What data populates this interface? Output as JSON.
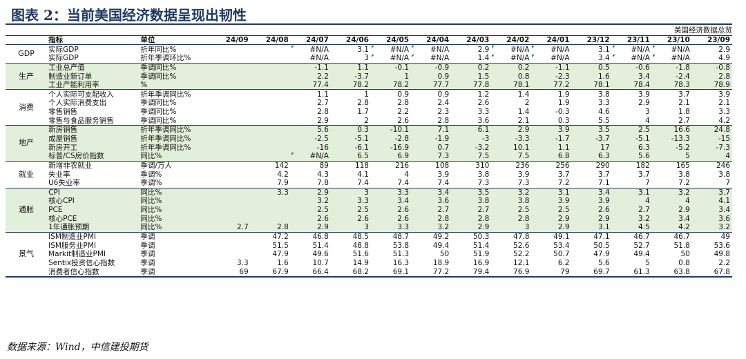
{
  "figure_title": "图表 2：当前美国经济数据呈现出韧性",
  "table_caption": "美国经济数据总览",
  "columns": {
    "group": "",
    "indicator": "指标",
    "unit": "单位",
    "periods": [
      "24/09",
      "24/08",
      "24/07",
      "24/06",
      "24/05",
      "24/04",
      "24/03",
      "24/02",
      "24/01",
      "23/12",
      "23/11",
      "23/10",
      "23/09"
    ]
  },
  "accent_color": "#1f3864",
  "shade_color": "#e2efda",
  "marker_color": "#1e8c45",
  "groups": [
    {
      "label": "GDP",
      "shaded": false,
      "rows": [
        {
          "indicator": "实际GDP",
          "unit": "折年同比%",
          "values": [
            "",
            "",
            "#N/A",
            "3.1",
            "#N/A",
            "#N/A",
            "2.9",
            "#N/A",
            "#N/A",
            "3.1",
            "#N/A",
            "#N/A",
            "2.9"
          ],
          "marks": [
            2,
            4,
            5,
            7,
            8,
            10,
            11
          ]
        },
        {
          "indicator": "实际GDP",
          "unit": "折年季调环比%",
          "values": [
            "",
            "",
            "#N/A",
            "3",
            "#N/A",
            "#N/A",
            "1.4",
            "#N/A",
            "#N/A",
            "3.4",
            "#N/A",
            "#N/A",
            "4.9"
          ],
          "marks": [
            4,
            5,
            7,
            8,
            10,
            11
          ]
        }
      ]
    },
    {
      "label": "生产",
      "shaded": true,
      "rows": [
        {
          "indicator": "工业总产值",
          "unit": "季调同比%",
          "values": [
            "",
            "",
            "-1.1",
            "1.1",
            "-0.1",
            "-0.9",
            "0.2",
            "0.2",
            "-1.1",
            "0.5",
            "-0.6",
            "-1.8",
            "-0.8"
          ],
          "marks": []
        },
        {
          "indicator": "制造业新订单",
          "unit": "季调同比%",
          "values": [
            "",
            "",
            "2.2",
            "-3.7",
            "1",
            "0.9",
            "1.5",
            "0.8",
            "-2.3",
            "1.6",
            "3.4",
            "-2.4",
            "2.8"
          ],
          "marks": []
        },
        {
          "indicator": "工业产能利用率",
          "unit": "%",
          "values": [
            "",
            "",
            "77.4",
            "78.2",
            "78.2",
            "77.7",
            "77.8",
            "78.1",
            "77.2",
            "78.1",
            "78.4",
            "78.3",
            "78.9"
          ],
          "marks": []
        }
      ]
    },
    {
      "label": "消费",
      "shaded": false,
      "rows": [
        {
          "indicator": "个人实际可支配收入",
          "unit": "折年季调同比%",
          "values": [
            "",
            "",
            "1.1",
            "1",
            "0.9",
            "0.9",
            "1.2",
            "1.4",
            "1.9",
            "3.8",
            "3.9",
            "3.7",
            "3.9"
          ],
          "marks": []
        },
        {
          "indicator": "个人实际消费支出",
          "unit": "季调同比%",
          "values": [
            "",
            "",
            "2.7",
            "2.8",
            "2.8",
            "2.4",
            "2.6",
            "2",
            "1.9",
            "3.3",
            "2.9",
            "2.1",
            "2.1"
          ],
          "marks": []
        },
        {
          "indicator": "零售销售",
          "unit": "季调同比%",
          "values": [
            "",
            "",
            "2.8",
            "1.7",
            "2.2",
            "2.3",
            "3.3",
            "1.4",
            "-0.3",
            "4.6",
            "3",
            "1.8",
            "3.3"
          ],
          "marks": []
        },
        {
          "indicator": "零售与食品服务销售",
          "unit": "季调同比%",
          "values": [
            "",
            "",
            "2.9",
            "2",
            "2.6",
            "2.8",
            "3.6",
            "2.1",
            "0.3",
            "5.5",
            "4",
            "2.7",
            "4.2"
          ],
          "marks": []
        }
      ]
    },
    {
      "label": "地产",
      "shaded": true,
      "rows": [
        {
          "indicator": "新房销售",
          "unit": "折年季调同比%",
          "values": [
            "",
            "",
            "5.6",
            "0.3",
            "-10.1",
            "7.1",
            "6.1",
            "2.9",
            "3.9",
            "3.5",
            "2.5",
            "16.6",
            "24.8"
          ],
          "marks": []
        },
        {
          "indicator": "成屋销售",
          "unit": "折年季调同比%",
          "values": [
            "",
            "",
            "-2.5",
            "-5.1",
            "-2.8",
            "-1.9",
            "-3",
            "-3.3",
            "-1.7",
            "-3.7",
            "-5.1",
            "-13.3",
            "-15"
          ],
          "marks": []
        },
        {
          "indicator": "新房开工",
          "unit": "折年季调同比%",
          "values": [
            "",
            "",
            "-16",
            "-6.1",
            "-16.9",
            "0.7",
            "-3.2",
            "10.1",
            "1.1",
            "17",
            "6.3",
            "-5.2",
            "-7.3"
          ],
          "marks": []
        },
        {
          "indicator": "标普/CS房价指数",
          "unit": "同比%",
          "values": [
            "",
            "",
            "#N/A",
            "6.5",
            "6.9",
            "7.3",
            "7.5",
            "7.5",
            "6.8",
            "6.3",
            "5.6",
            "5",
            "4"
          ],
          "marks": [
            2
          ]
        }
      ]
    },
    {
      "label": "就业",
      "shaded": false,
      "rows": [
        {
          "indicator": "新增非农就业",
          "unit": "季调/万人",
          "values": [
            "",
            "142",
            "89",
            "118",
            "216",
            "108",
            "310",
            "236",
            "256",
            "290",
            "182",
            "165",
            "246"
          ],
          "marks": []
        },
        {
          "indicator": "失业率",
          "unit": "季调%",
          "values": [
            "",
            "4.2",
            "4.3",
            "4.1",
            "4",
            "3.9",
            "3.8",
            "3.9",
            "3.7",
            "3.7",
            "3.7",
            "3.8",
            "3.8"
          ],
          "marks": []
        },
        {
          "indicator": "U6失业率",
          "unit": "季调%",
          "values": [
            "",
            "7.9",
            "7.8",
            "7.4",
            "7.4",
            "7.4",
            "7.3",
            "7.3",
            "7.2",
            "7.1",
            "7",
            "7.2",
            "7"
          ],
          "marks": []
        }
      ]
    },
    {
      "label": "通胀",
      "shaded": true,
      "rows": [
        {
          "indicator": "CPI",
          "unit": "同比%",
          "values": [
            "",
            "3.3",
            "2.9",
            "3",
            "3.3",
            "3.4",
            "3.5",
            "3.2",
            "3.1",
            "3.4",
            "3.1",
            "3.2",
            "3.7"
          ],
          "marks": []
        },
        {
          "indicator": "核心CPI",
          "unit": "同比%",
          "values": [
            "",
            "",
            "3.2",
            "3.3",
            "3.4",
            "3.6",
            "3.8",
            "3.8",
            "3.9",
            "3.9",
            "4",
            "4",
            "4.1"
          ],
          "marks": []
        },
        {
          "indicator": "PCE",
          "unit": "同比%",
          "values": [
            "",
            "",
            "2.5",
            "2.5",
            "2.6",
            "2.7",
            "2.7",
            "2.5",
            "2.5",
            "2.6",
            "2.7",
            "2.9",
            "3.4"
          ],
          "marks": []
        },
        {
          "indicator": "核心PCE",
          "unit": "同比%",
          "values": [
            "",
            "",
            "2.6",
            "2.6",
            "2.6",
            "2.8",
            "2.8",
            "2.8",
            "2.9",
            "2.9",
            "3.2",
            "3.4",
            "3.6"
          ],
          "marks": []
        },
        {
          "indicator": "1年通胀预期",
          "unit": "同比%",
          "values": [
            "2.7",
            "2.8",
            "2.9",
            "3",
            "3.3",
            "3.2",
            "2.9",
            "3",
            "2.9",
            "3.1",
            "4.5",
            "4.2",
            "3.2"
          ],
          "marks": []
        }
      ]
    },
    {
      "label": "景气",
      "shaded": false,
      "rows": [
        {
          "indicator": "ISM制造业PMI",
          "unit": "季调",
          "values": [
            "",
            "47.2",
            "46.8",
            "48.5",
            "48.7",
            "49.2",
            "50.3",
            "47.8",
            "49.1",
            "47.1",
            "46.7",
            "46.7",
            "49"
          ],
          "marks": []
        },
        {
          "indicator": "ISM服务业PMI",
          "unit": "季调",
          "values": [
            "",
            "51.5",
            "51.4",
            "48.8",
            "53.8",
            "49.4",
            "51.4",
            "52.6",
            "53.4",
            "50.5",
            "52.7",
            "51.8",
            "53.6"
          ],
          "marks": []
        },
        {
          "indicator": "Markit制造业PMI",
          "unit": "季调",
          "values": [
            "",
            "47.9",
            "49.6",
            "51.6",
            "51.3",
            "50",
            "51.9",
            "52.2",
            "50.7",
            "47.9",
            "49.4",
            "50",
            "49.8"
          ],
          "marks": []
        },
        {
          "indicator": "Sentix投资信心指数",
          "unit": "季调",
          "values": [
            "3.3",
            "1.6",
            "10.7",
            "14.9",
            "16.3",
            "18.9",
            "16.9",
            "12.1",
            "6.2",
            "5.6",
            "5",
            "0.8",
            "2.2"
          ],
          "marks": []
        },
        {
          "indicator": "消费者信心指数",
          "unit": "季调",
          "values": [
            "69",
            "67.9",
            "66.4",
            "68.2",
            "69.1",
            "77.2",
            "79.4",
            "76.9",
            "79",
            "69.7",
            "61.3",
            "63.8",
            "67.8"
          ],
          "marks": []
        }
      ]
    }
  ],
  "source_note": "数据来源：Wind，中信建投期货"
}
